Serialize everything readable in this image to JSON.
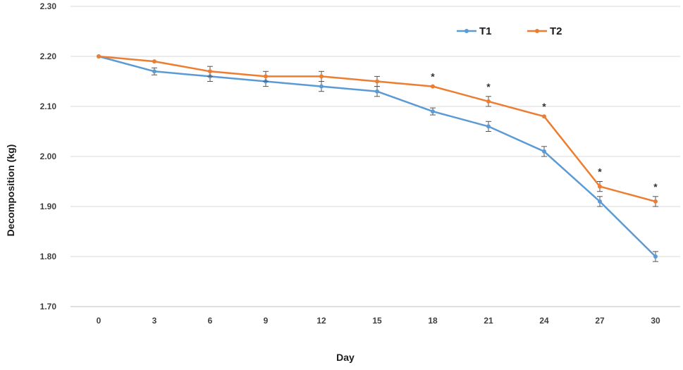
{
  "chart_data": {
    "type": "line",
    "title": "",
    "xlabel": "Day",
    "ylabel": "Decomposition (kg)",
    "categories": [
      "0",
      "3",
      "6",
      "9",
      "12",
      "15",
      "18",
      "21",
      "24",
      "27",
      "30"
    ],
    "yticks": [
      "1.70",
      "1.80",
      "1.90",
      "2.00",
      "2.10",
      "2.20",
      "2.30"
    ],
    "ylim": [
      1.7,
      2.3
    ],
    "grid": true,
    "legend_position": "top-right",
    "series": [
      {
        "name": "T1",
        "color": "#5b9bd5",
        "values": [
          2.2,
          2.17,
          2.16,
          2.15,
          2.14,
          2.13,
          2.09,
          2.06,
          2.01,
          1.91,
          1.8
        ],
        "errors": [
          0.0,
          0.007,
          0.01,
          0.01,
          0.01,
          0.01,
          0.007,
          0.01,
          0.01,
          0.01,
          0.01
        ]
      },
      {
        "name": "T2",
        "color": "#ed7d31",
        "values": [
          2.2,
          2.19,
          2.17,
          2.16,
          2.16,
          2.15,
          2.14,
          2.11,
          2.08,
          1.94,
          1.91
        ],
        "errors": [
          0.0,
          0.0,
          0.01,
          0.01,
          0.01,
          0.01,
          0.0,
          0.01,
          0.0,
          0.01,
          0.01
        ]
      }
    ],
    "significance_marker": "*",
    "significant_days": [
      "18",
      "21",
      "24",
      "27",
      "30"
    ]
  }
}
